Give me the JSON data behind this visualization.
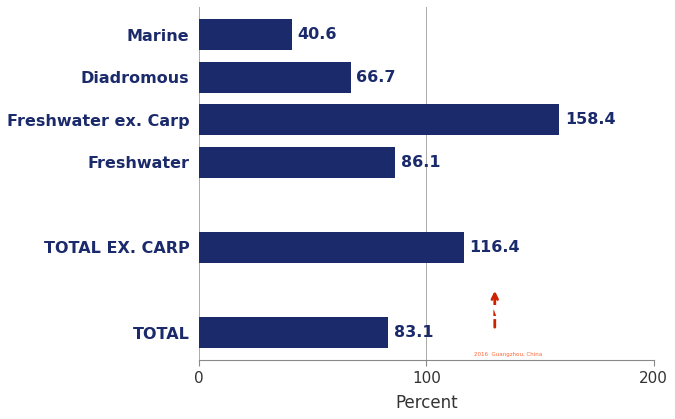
{
  "categories": [
    "TOTAL",
    "",
    "TOTAL EX. CARP",
    "",
    "Freshwater",
    "Freshwater ex. Carp",
    "Diadromous",
    "Marine"
  ],
  "values": [
    83.1,
    null,
    116.4,
    null,
    86.1,
    158.4,
    66.7,
    40.6
  ],
  "bar_color": "#1b2a6b",
  "xlabel": "Percent",
  "xlim": [
    0,
    200
  ],
  "xticks": [
    0,
    100,
    200
  ],
  "bar_height": 0.72,
  "label_fontsize": 11.5,
  "tick_fontsize": 11,
  "xlabel_fontsize": 12,
  "value_label_color": "#1b2a6b",
  "category_label_color": "#1b2a6b",
  "background_color": "#ffffff",
  "grid_color": "#aaaaaa",
  "goal_bg_color": "#1a5558",
  "goal_text_color": "#ffffff",
  "goal_red_color": "#cc2200"
}
